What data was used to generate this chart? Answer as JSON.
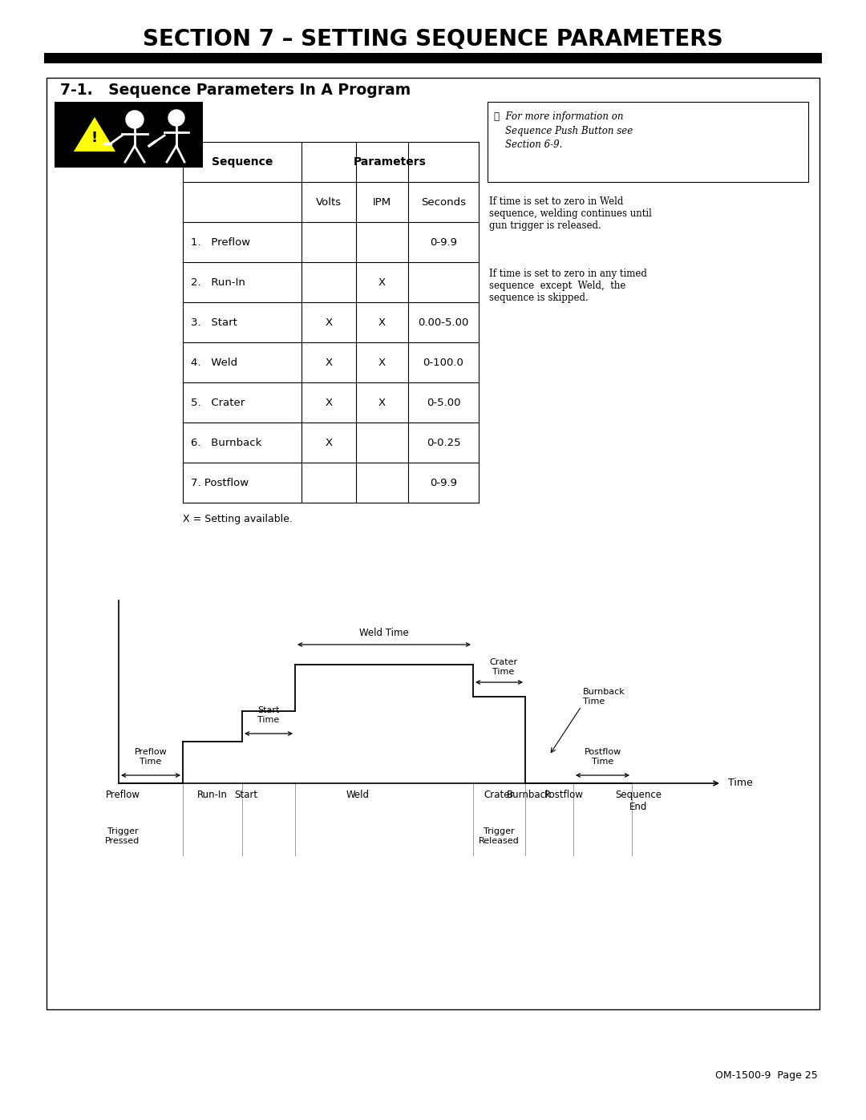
{
  "title": "SECTION 7 – SETTING SEQUENCE PARAMETERS",
  "subtitle": "7-1.   Sequence Parameters In A Program",
  "table_rows": [
    [
      "1.   Preflow",
      "",
      "",
      "0-9.9"
    ],
    [
      "2.   Run-In",
      "",
      "X",
      ""
    ],
    [
      "3.   Start",
      "X",
      "X",
      "0.00-5.00"
    ],
    [
      "4.   Weld",
      "X",
      "X",
      "0-100.0"
    ],
    [
      "5.   Crater",
      "X",
      "X",
      "0-5.00"
    ],
    [
      "6.   Burnback",
      "X",
      "",
      "0-0.25"
    ],
    [
      "7. Postflow",
      "",
      "",
      "0-9.9"
    ]
  ],
  "footnote": "X = Setting available.",
  "side_note_italic": "For more information on\nSequence Push Button see\nSection 6-9.",
  "side_para1": "If time is set to zero in Weld\nsequence, welding continues until\ngun trigger is released.",
  "side_para2": "If time is set to zero in any timed\nsequence  except  Weld,  the\nsequence is skipped.",
  "page_footer": "OM-1500-9  Page 25",
  "bg_color": "#ffffff",
  "time_arrow_label": "Time"
}
